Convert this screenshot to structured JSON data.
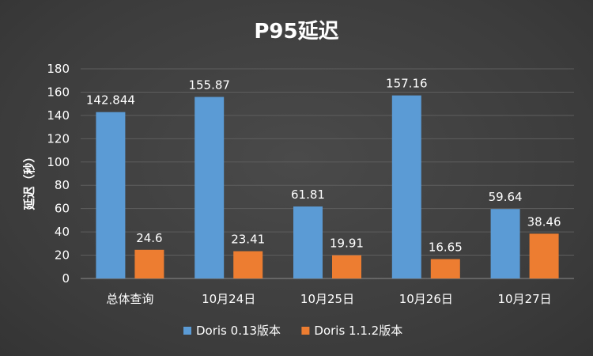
{
  "chart_data": {
    "type": "bar",
    "title": "P95延迟",
    "ylabel": "延迟（秒）",
    "xlabel": "",
    "categories": [
      "总体查询",
      "10月24日",
      "10月25日",
      "10月26日",
      "10月27日"
    ],
    "series": [
      {
        "name": "Doris 0.13版本",
        "values": [
          142.844,
          155.87,
          61.81,
          157.16,
          59.64
        ],
        "labels": [
          "142.844",
          "155.87",
          "61.81",
          "157.16",
          "59.64"
        ],
        "color": "#5b9bd5"
      },
      {
        "name": "Doris 1.1.2版本",
        "values": [
          24.6,
          23.41,
          19.91,
          16.65,
          38.46
        ],
        "labels": [
          "24.6",
          "23.41",
          "19.91",
          "16.65",
          "38.46"
        ],
        "color": "#ed7d31"
      }
    ],
    "ylim": [
      0,
      180
    ],
    "yticks": [
      0,
      20,
      40,
      60,
      80,
      100,
      120,
      140,
      160,
      180
    ],
    "grid": true,
    "legend_position": "bottom"
  }
}
